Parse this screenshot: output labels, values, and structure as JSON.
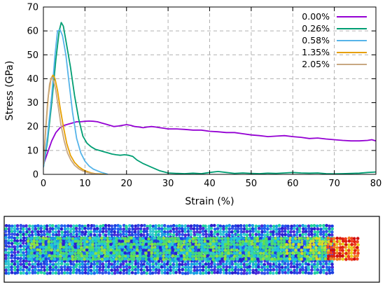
{
  "chart_data": {
    "type": "line",
    "title": "",
    "xlabel": "Strain (%)",
    "ylabel": "Stress (GPa)",
    "xlim": [
      0,
      80
    ],
    "ylim": [
      0,
      70
    ],
    "x_ticks": [
      0,
      10,
      20,
      30,
      40,
      50,
      60,
      70,
      80
    ],
    "y_ticks": [
      0,
      10,
      20,
      30,
      40,
      50,
      60,
      70
    ],
    "grid": true,
    "legend_position": "top-right",
    "series": [
      {
        "name": "0.00%",
        "color": "#9400d3",
        "points": [
          [
            0,
            4
          ],
          [
            1,
            9
          ],
          [
            2,
            14
          ],
          [
            3,
            17.5
          ],
          [
            4,
            19.5
          ],
          [
            5,
            20.5
          ],
          [
            6,
            21
          ],
          [
            7,
            21.5
          ],
          [
            8,
            22
          ],
          [
            9,
            22
          ],
          [
            10,
            22.2
          ],
          [
            11,
            22.3
          ],
          [
            12,
            22.2
          ],
          [
            13,
            22
          ],
          [
            14,
            21.5
          ],
          [
            15,
            21
          ],
          [
            16,
            20.5
          ],
          [
            17,
            20
          ],
          [
            18,
            20.2
          ],
          [
            19,
            20.5
          ],
          [
            20,
            20.8
          ],
          [
            21,
            20.5
          ],
          [
            22,
            20
          ],
          [
            23,
            19.8
          ],
          [
            24,
            19.5
          ],
          [
            25,
            19.8
          ],
          [
            26,
            20
          ],
          [
            27,
            19.8
          ],
          [
            28,
            19.5
          ],
          [
            29,
            19.3
          ],
          [
            30,
            19
          ],
          [
            32,
            19
          ],
          [
            34,
            18.8
          ],
          [
            36,
            18.5
          ],
          [
            38,
            18.5
          ],
          [
            40,
            18
          ],
          [
            42,
            17.8
          ],
          [
            44,
            17.5
          ],
          [
            46,
            17.5
          ],
          [
            48,
            17
          ],
          [
            50,
            16.5
          ],
          [
            52,
            16.2
          ],
          [
            54,
            15.8
          ],
          [
            56,
            16
          ],
          [
            58,
            16.2
          ],
          [
            60,
            15.8
          ],
          [
            62,
            15.5
          ],
          [
            64,
            15
          ],
          [
            66,
            15.2
          ],
          [
            68,
            14.8
          ],
          [
            70,
            14.5
          ],
          [
            72,
            14.2
          ],
          [
            74,
            14
          ],
          [
            76,
            14
          ],
          [
            78,
            14.2
          ],
          [
            79,
            14.5
          ],
          [
            80,
            14
          ]
        ]
      },
      {
        "name": "0.26%",
        "color": "#009e73",
        "points": [
          [
            0,
            3
          ],
          [
            1,
            14
          ],
          [
            2,
            30
          ],
          [
            3,
            48
          ],
          [
            3.8,
            60
          ],
          [
            4.3,
            63.5
          ],
          [
            4.8,
            62
          ],
          [
            5.5,
            55
          ],
          [
            6.5,
            45
          ],
          [
            7.5,
            33
          ],
          [
            8.5,
            23
          ],
          [
            9.5,
            16
          ],
          [
            10.5,
            13
          ],
          [
            11.5,
            11.5
          ],
          [
            12.5,
            10.5
          ],
          [
            13.5,
            10
          ],
          [
            14.5,
            9.5
          ],
          [
            15.5,
            9
          ],
          [
            16.5,
            8.5
          ],
          [
            17.5,
            8.2
          ],
          [
            18.5,
            8
          ],
          [
            19.5,
            8.2
          ],
          [
            20.5,
            8
          ],
          [
            21.5,
            7.5
          ],
          [
            22.5,
            6
          ],
          [
            24,
            4.5
          ],
          [
            26,
            3
          ],
          [
            28,
            1.5
          ],
          [
            30,
            0.6
          ],
          [
            32,
            0.4
          ],
          [
            34,
            0.3
          ],
          [
            36,
            0.5
          ],
          [
            38,
            0.3
          ],
          [
            40,
            0.8
          ],
          [
            42,
            1.2
          ],
          [
            44,
            0.8
          ],
          [
            46,
            0.4
          ],
          [
            48,
            0.6
          ],
          [
            50,
            0.4
          ],
          [
            52,
            0.3
          ],
          [
            54,
            0.5
          ],
          [
            56,
            0.4
          ],
          [
            58,
            0.6
          ],
          [
            60,
            0.8
          ],
          [
            62,
            0.6
          ],
          [
            64,
            0.5
          ],
          [
            66,
            0.6
          ],
          [
            68,
            0.3
          ],
          [
            70,
            0.2
          ],
          [
            72,
            0.3
          ],
          [
            74,
            0.4
          ],
          [
            76,
            0.5
          ],
          [
            78,
            0.8
          ],
          [
            80,
            1
          ]
        ]
      },
      {
        "name": "0.58%",
        "color": "#56b4e9",
        "points": [
          [
            0,
            3
          ],
          [
            1,
            16
          ],
          [
            2,
            33
          ],
          [
            2.8,
            50
          ],
          [
            3.4,
            60
          ],
          [
            4,
            60.5
          ],
          [
            4.6,
            58
          ],
          [
            5.4,
            50
          ],
          [
            6.2,
            38
          ],
          [
            7,
            26
          ],
          [
            8,
            15
          ],
          [
            9,
            9
          ],
          [
            10,
            5.5
          ],
          [
            11,
            3.5
          ],
          [
            12,
            2.2
          ],
          [
            13,
            1.5
          ],
          [
            14,
            0.8
          ],
          [
            15,
            0.3
          ],
          [
            15.5,
            0
          ]
        ]
      },
      {
        "name": "1.35%",
        "color": "#e69f00",
        "points": [
          [
            0,
            4
          ],
          [
            0.6,
            20
          ],
          [
            1.2,
            33
          ],
          [
            1.8,
            40
          ],
          [
            2.3,
            41.5
          ],
          [
            2.8,
            40
          ],
          [
            3.4,
            35
          ],
          [
            4,
            28
          ],
          [
            4.8,
            20
          ],
          [
            5.6,
            13
          ],
          [
            6.5,
            8
          ],
          [
            7.5,
            5
          ],
          [
            8.5,
            3.2
          ],
          [
            9.5,
            2
          ],
          [
            10.5,
            1.2
          ],
          [
            11.5,
            0.6
          ],
          [
            12.5,
            0.3
          ],
          [
            14,
            0.1
          ],
          [
            15,
            0
          ]
        ]
      },
      {
        "name": "2.05%",
        "color": "#c8a882",
        "points": [
          [
            0,
            4
          ],
          [
            0.5,
            18
          ],
          [
            1,
            30
          ],
          [
            1.5,
            38
          ],
          [
            2,
            40.5
          ],
          [
            2.5,
            39
          ],
          [
            3,
            35
          ],
          [
            3.6,
            28
          ],
          [
            4.2,
            21
          ],
          [
            5,
            14
          ],
          [
            5.8,
            9
          ],
          [
            6.6,
            6
          ],
          [
            7.5,
            3.8
          ],
          [
            8.5,
            2.3
          ],
          [
            9.5,
            1.4
          ],
          [
            10.5,
            0.8
          ],
          [
            11.5,
            0.4
          ],
          [
            12.5,
            0.2
          ],
          [
            13.5,
            0
          ]
        ]
      }
    ]
  },
  "simulation_view": {
    "description_name": "atomic-stress-snapshot"
  }
}
